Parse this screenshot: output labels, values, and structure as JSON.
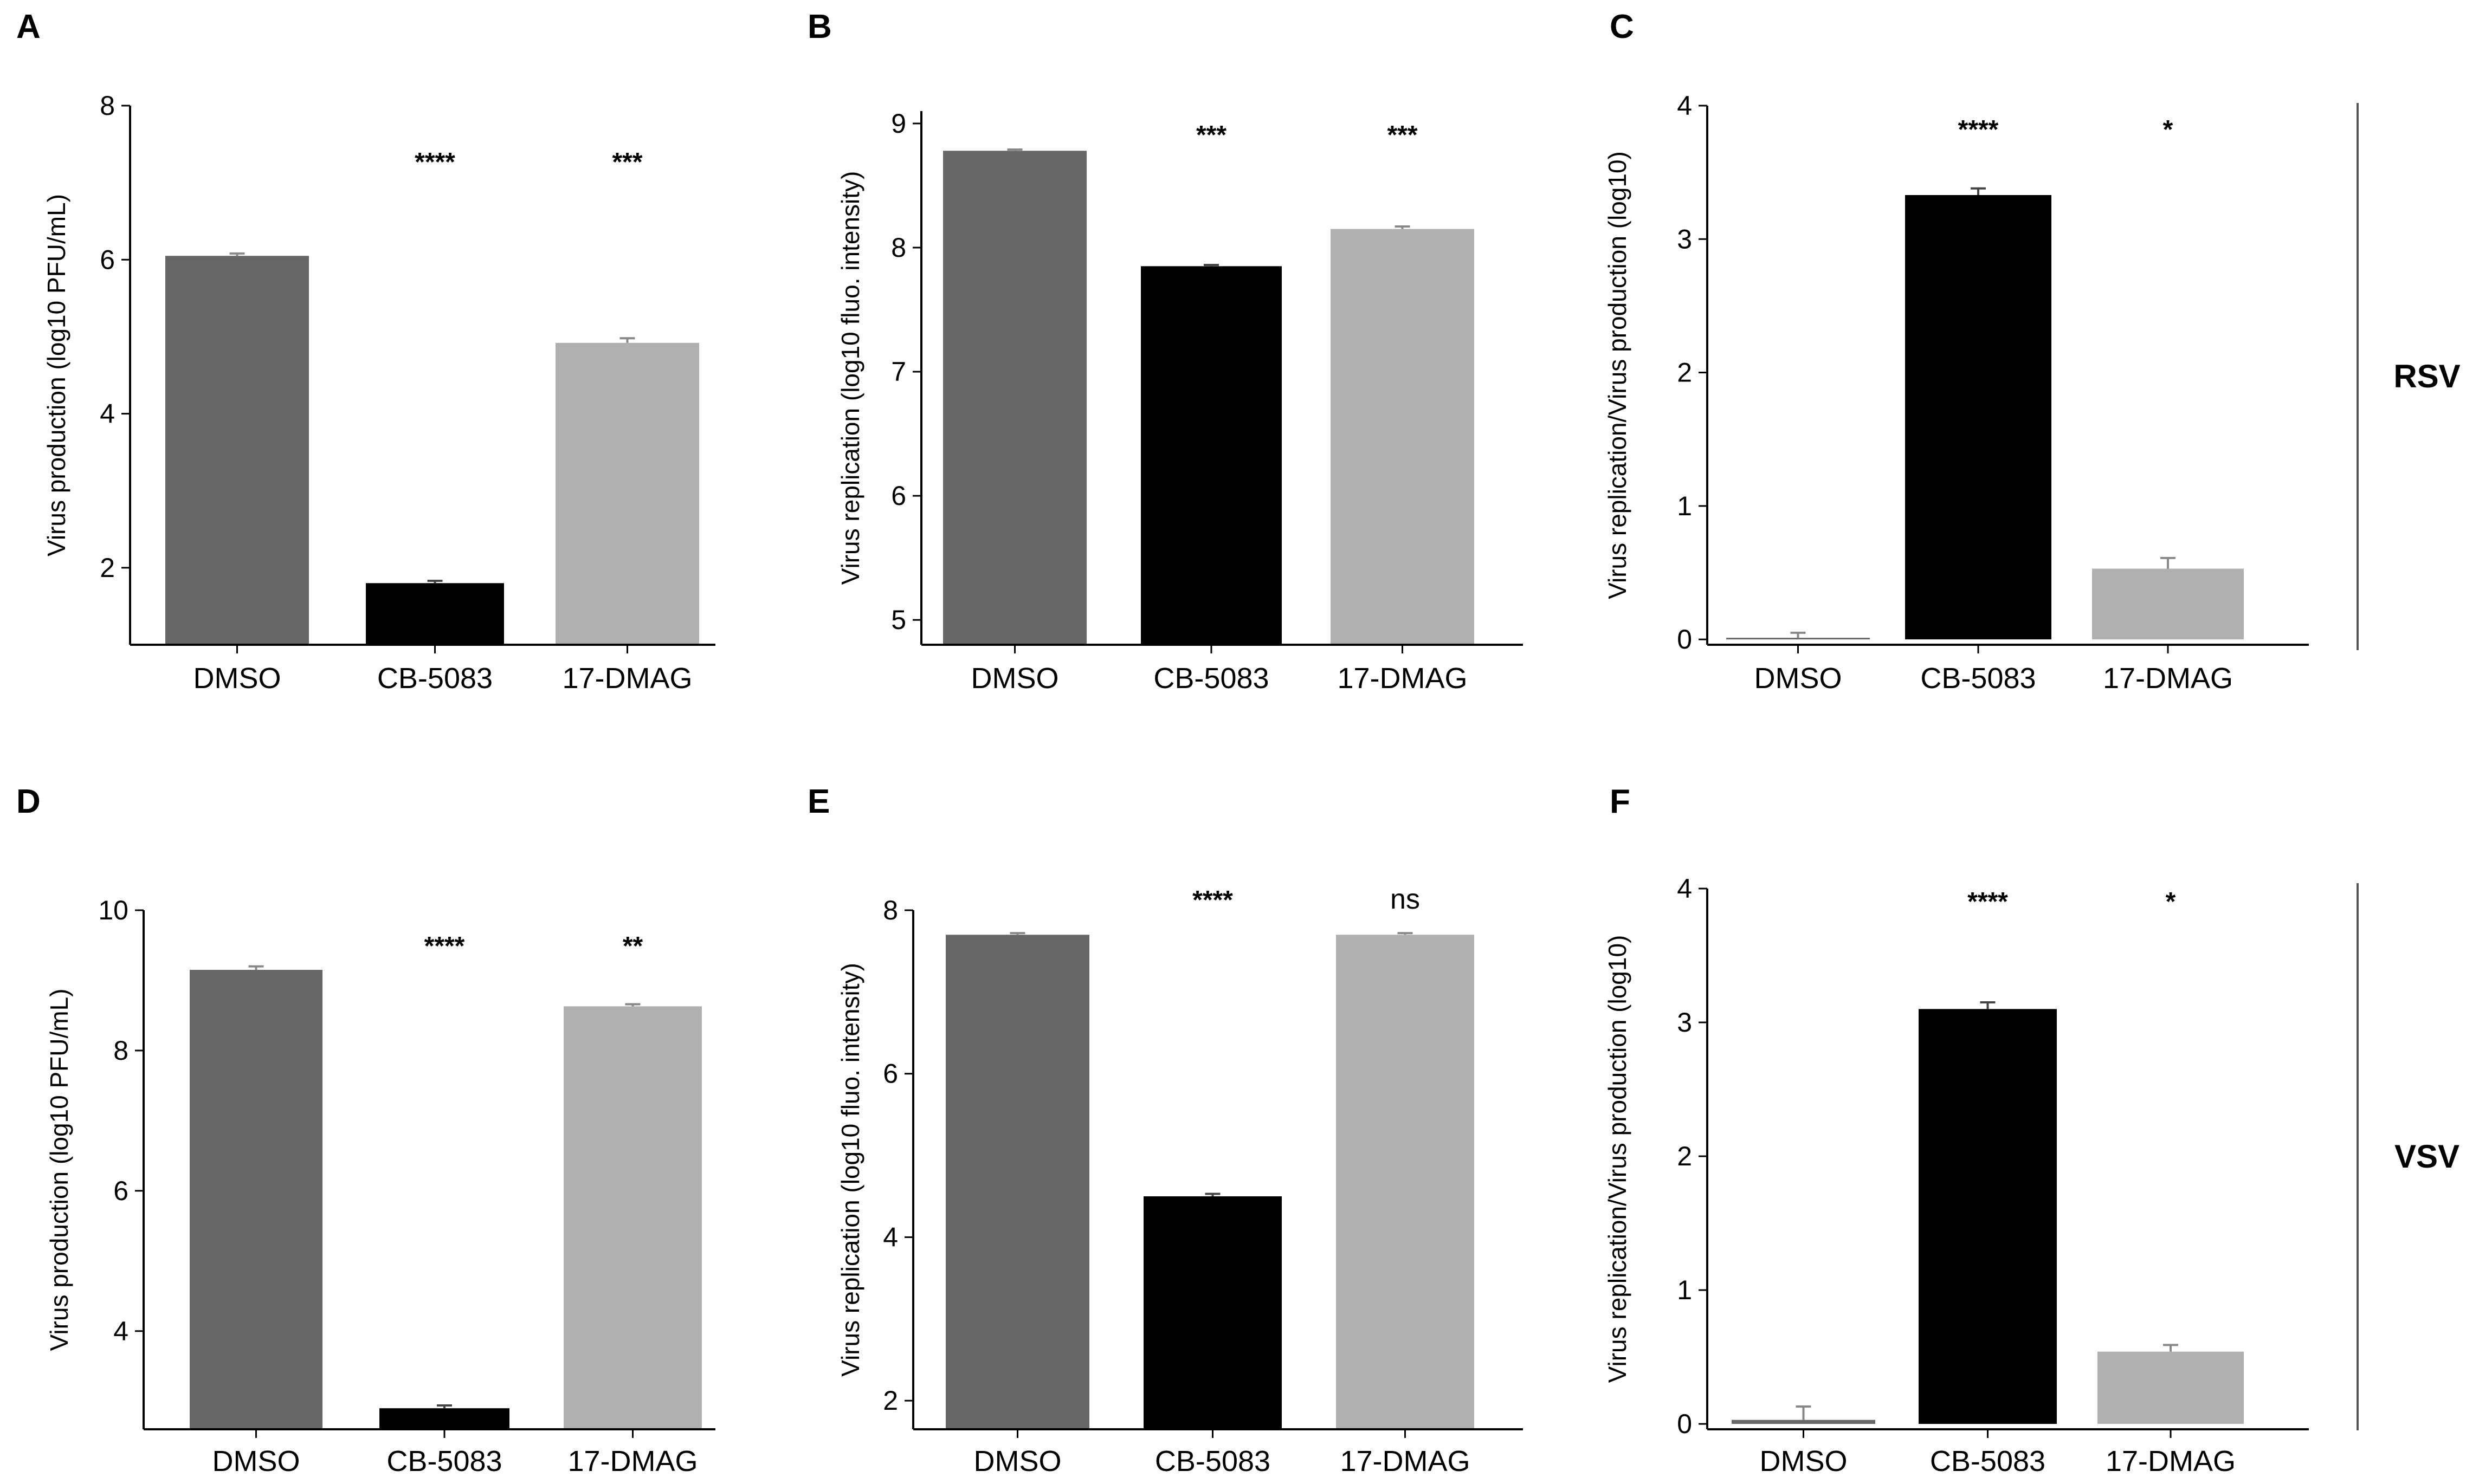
{
  "row_labels": [
    "RSV",
    "VSV"
  ],
  "chart_data": [
    {
      "panel": "A",
      "type": "bar",
      "row": "RSV",
      "categories": [
        "DMSO",
        "CB-5083",
        "17-DMAG"
      ],
      "values": [
        6.05,
        1.8,
        4.92
      ],
      "errors": [
        0.03,
        0.03,
        0.06
      ],
      "colors": [
        "#666666",
        "#000000",
        "#b0b0b0"
      ],
      "ylabel": "Virus production (log10 PFU/mL)",
      "ylim": [
        1,
        8
      ],
      "yticks": [
        2,
        4,
        6,
        8
      ],
      "significance": [
        "",
        "****",
        "***"
      ]
    },
    {
      "panel": "B",
      "type": "bar",
      "row": "RSV",
      "categories": [
        "DMSO",
        "CB-5083",
        "17-DMAG"
      ],
      "values": [
        8.78,
        7.85,
        8.15
      ],
      "errors": [
        0.01,
        0.01,
        0.02
      ],
      "colors": [
        "#666666",
        "#000000",
        "#b0b0b0"
      ],
      "ylabel": "Virus replication (log10 fluo. intensity)",
      "ylim": [
        4.8,
        9.1
      ],
      "yticks": [
        5,
        6,
        7,
        8,
        9
      ],
      "significance": [
        "",
        "***",
        "***"
      ]
    },
    {
      "panel": "C",
      "type": "bar",
      "row": "RSV",
      "categories": [
        "DMSO",
        "CB-5083",
        "17-DMAG"
      ],
      "values": [
        0.01,
        3.33,
        0.53
      ],
      "errors": [
        0.04,
        0.05,
        0.08
      ],
      "colors": [
        "#666666",
        "#000000",
        "#b0b0b0"
      ],
      "ylabel": "Virus replication/Virus production (log10)",
      "ylim": [
        -0.04,
        4.0
      ],
      "yticks": [
        0,
        1,
        2,
        3,
        4
      ],
      "significance": [
        "",
        "****",
        "*"
      ]
    },
    {
      "panel": "D",
      "type": "bar",
      "row": "VSV",
      "categories": [
        "DMSO",
        "CB-5083",
        "17-DMAG"
      ],
      "values": [
        9.15,
        2.9,
        8.63
      ],
      "errors": [
        0.05,
        0.04,
        0.03
      ],
      "colors": [
        "#666666",
        "#000000",
        "#b0b0b0"
      ],
      "ylabel": "Virus production (log10 PFU/mL)",
      "ylim": [
        2.6,
        10.0
      ],
      "yticks": [
        4,
        6,
        8,
        10
      ],
      "significance": [
        "",
        "****",
        "**"
      ]
    },
    {
      "panel": "E",
      "type": "bar",
      "row": "VSV",
      "categories": [
        "DMSO",
        "CB-5083",
        "17-DMAG"
      ],
      "values": [
        7.7,
        4.5,
        7.7
      ],
      "errors": [
        0.02,
        0.03,
        0.02
      ],
      "colors": [
        "#666666",
        "#000000",
        "#b0b0b0"
      ],
      "ylabel": "Virus replication (log10 fluo. intensity)",
      "ylim": [
        1.65,
        8.0
      ],
      "yticks": [
        2,
        4,
        6,
        8
      ],
      "significance": [
        "",
        "****",
        "ns"
      ]
    },
    {
      "panel": "F",
      "type": "bar",
      "row": "VSV",
      "categories": [
        "DMSO",
        "CB-5083",
        "17-DMAG"
      ],
      "values": [
        0.03,
        3.1,
        0.54
      ],
      "errors": [
        0.1,
        0.05,
        0.05
      ],
      "colors": [
        "#666666",
        "#000000",
        "#b0b0b0"
      ],
      "ylabel": "Virus replication/Virus production (log10)",
      "ylim": [
        -0.04,
        4.0
      ],
      "yticks": [
        0,
        1,
        2,
        3,
        4
      ],
      "significance": [
        "",
        "****",
        "*"
      ]
    }
  ]
}
